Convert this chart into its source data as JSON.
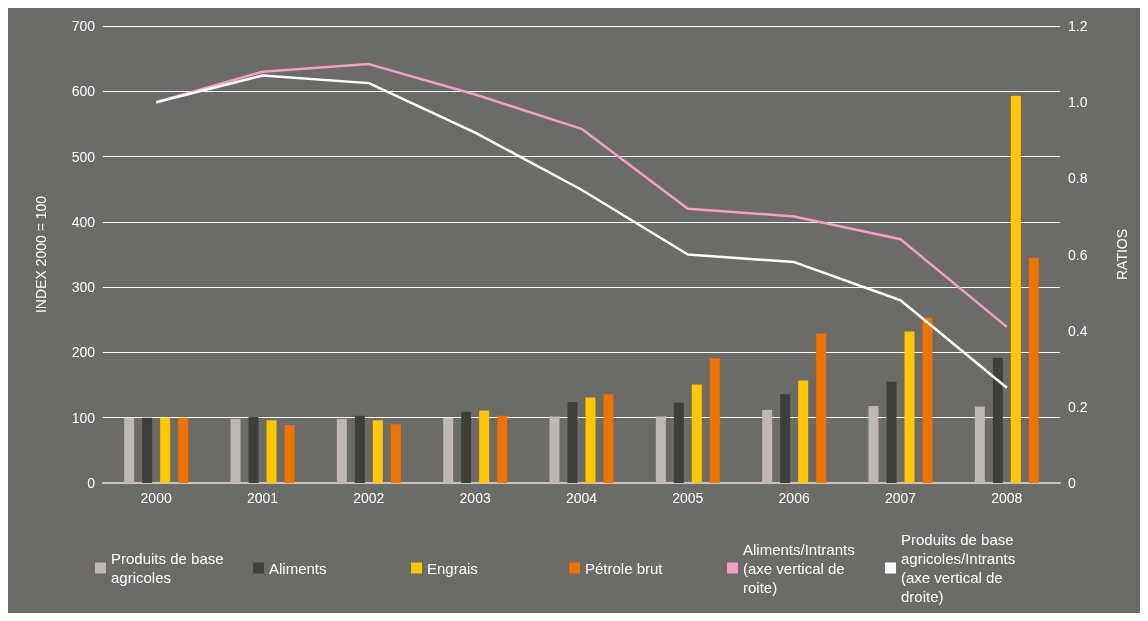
{
  "chart_data": {
    "type": "bar",
    "ylabel": "INDEX 2000 = 100",
    "y2label": "RATIOS",
    "categories": [
      "2000",
      "2001",
      "2002",
      "2003",
      "2004",
      "2005",
      "2006",
      "2007",
      "2008"
    ],
    "series": [
      {
        "name": "Produits de base agricoles",
        "color": "#bfb7b3",
        "values": [
          100,
          98,
          98,
          100,
          102,
          102,
          112,
          118,
          117
        ]
      },
      {
        "name": "Aliments",
        "color": "#403e3a",
        "values": [
          100,
          101,
          103,
          109,
          124,
          123,
          136,
          155,
          192
        ]
      },
      {
        "name": "Engrais",
        "color": "#ffc800",
        "values": [
          100,
          96,
          96,
          111,
          131,
          151,
          157,
          232,
          593
        ]
      },
      {
        "name": "Pétrole brut",
        "color": "#ee7300",
        "values": [
          100,
          89,
          90,
          103,
          136,
          191,
          229,
          253,
          345
        ]
      },
      {
        "name": "Aliments/Intrants (axe vertical de roite)",
        "type": "line",
        "axis": "y2",
        "color": "#f29fc5",
        "values": [
          1.0,
          1.08,
          1.1,
          1.02,
          0.93,
          0.72,
          0.7,
          0.64,
          0.41
        ]
      },
      {
        "name": "Produits de base agricoles/Intrants (axe vertical de droite)",
        "type": "line",
        "axis": "y2",
        "color": "#ffffff",
        "values": [
          1.0,
          1.07,
          1.05,
          0.92,
          0.77,
          0.6,
          0.58,
          0.48,
          0.25
        ]
      }
    ],
    "ylim": [
      0,
      700
    ],
    "yticks": [
      0,
      100,
      200,
      300,
      400,
      500,
      600,
      700
    ],
    "y2lim": [
      0,
      1.2
    ],
    "y2ticks": [
      {
        "value": 0,
        "label": "0"
      },
      {
        "value": 0.2,
        "label": "0.2"
      },
      {
        "value": 0.4,
        "label": "0.4"
      },
      {
        "value": 0.6,
        "label": "0.6"
      },
      {
        "value": 0.8,
        "label": "0.8"
      },
      {
        "value": 1.0,
        "label": "1.0"
      },
      {
        "value": 1.2,
        "label": "1.2"
      }
    ],
    "grid": "y",
    "legend": "bottom",
    "marker": "none",
    "line_style": "solid"
  }
}
